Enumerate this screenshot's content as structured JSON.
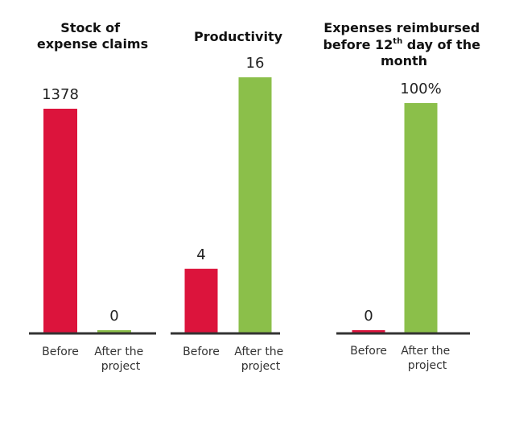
{
  "chart_data": [
    {
      "type": "bar",
      "title": "Stock of expense claims",
      "categories": [
        "Before",
        "After the project"
      ],
      "values": [
        1378,
        0
      ],
      "value_labels": [
        "1378",
        "0"
      ],
      "ylim": [
        0,
        1378
      ],
      "xlabel": "",
      "ylabel": "",
      "grid": false
    },
    {
      "type": "bar",
      "title": "Productivity",
      "categories": [
        "Before",
        "After the project"
      ],
      "values": [
        4,
        16
      ],
      "value_labels": [
        "4",
        "16"
      ],
      "ylim": [
        0,
        16
      ],
      "xlabel": "",
      "ylabel": "",
      "grid": false
    },
    {
      "type": "bar",
      "title": "Expenses reimbursed before 12th day of the month",
      "categories": [
        "Before",
        "After the project"
      ],
      "values": [
        0,
        100
      ],
      "value_labels": [
        "0",
        "100%"
      ],
      "ylim": [
        0,
        100
      ],
      "xlabel": "",
      "ylabel": "",
      "grid": false
    }
  ],
  "text": {
    "titles": {
      "stock": [
        "Stock of",
        "expense claims"
      ],
      "productivity": [
        "Productivity"
      ],
      "reimbursed": {
        "line1": "Expenses reimbursed",
        "line2_prefix": "before 12",
        "line2_sup": "th",
        "line2_suffix": " day of the",
        "line3": "month"
      }
    },
    "category_lines": {
      "before": [
        "Before"
      ],
      "after": [
        "After the",
        "project"
      ]
    }
  },
  "colors": {
    "before": "#dc143c",
    "after": "#8bbf4a",
    "axis": "#333333"
  }
}
